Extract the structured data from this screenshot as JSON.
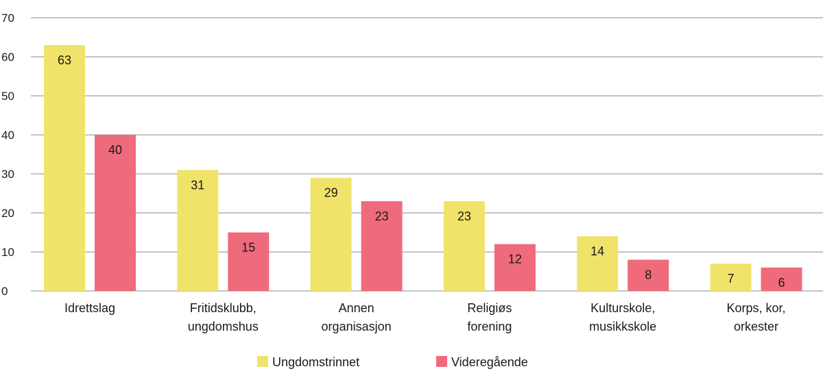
{
  "chart_data": {
    "type": "bar",
    "categories": [
      [
        "Idrettslag"
      ],
      [
        "Fritidsklubb,",
        "ungdomshus"
      ],
      [
        "Annen",
        "organisasjon"
      ],
      [
        "Religiøs",
        "forening"
      ],
      [
        "Kulturskole,",
        "musikkskole"
      ],
      [
        "Korps, kor,",
        "orkester"
      ]
    ],
    "series": [
      {
        "name": "Ungdomstrinnet",
        "color": "#f0e36a",
        "values": [
          63,
          31,
          29,
          23,
          14,
          7
        ]
      },
      {
        "name": "Videregående",
        "color": "#ef6b7b",
        "values": [
          40,
          15,
          23,
          12,
          8,
          6
        ]
      }
    ],
    "ylim": [
      0,
      70
    ],
    "yticks": [
      0,
      10,
      20,
      30,
      40,
      50,
      60,
      70
    ],
    "grid": true,
    "legend": "bottom",
    "title": "",
    "xlabel": "",
    "ylabel": ""
  }
}
